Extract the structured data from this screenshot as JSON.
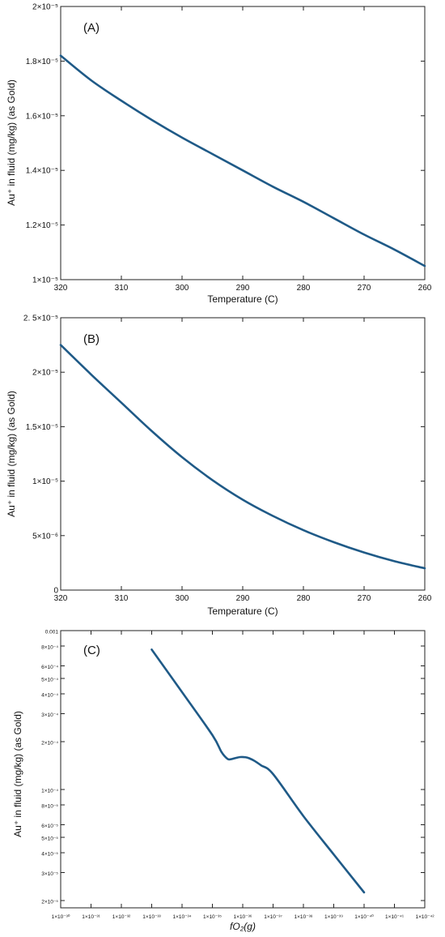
{
  "colors": {
    "series": "#1f5a87"
  },
  "chart_data": [
    {
      "type": "line",
      "panel_label": "(A)",
      "xlabel": "Temperature (C)",
      "ylabel": "Au⁺ in fluid (mg/kg) (as Gold)",
      "xlim": [
        320,
        260
      ],
      "ylim": [
        1e-05,
        2e-05
      ],
      "x_ticks": [
        320,
        310,
        300,
        290,
        280,
        270,
        260
      ],
      "x_tick_labels": [
        "320",
        "310",
        "300",
        "290",
        "280",
        "270",
        "260"
      ],
      "y_ticks": [
        1e-05,
        1.2e-05,
        1.4e-05,
        1.6e-05,
        1.8e-05,
        2e-05
      ],
      "y_tick_labels": [
        "1×10⁻⁵",
        "1.2×10⁻⁵",
        "1.4×10⁻⁵",
        "1.6×10⁻⁵",
        "1.8×10⁻⁵",
        "2×10⁻⁵"
      ],
      "series": [
        {
          "x": [
            320,
            315,
            310,
            305,
            300,
            295,
            290,
            285,
            280,
            275,
            270,
            265,
            260
          ],
          "y": [
            1.82e-05,
            1.73e-05,
            1.655e-05,
            1.585e-05,
            1.52e-05,
            1.46e-05,
            1.4e-05,
            1.34e-05,
            1.285e-05,
            1.225e-05,
            1.165e-05,
            1.11e-05,
            1.05e-05
          ]
        }
      ]
    },
    {
      "type": "line",
      "panel_label": "(B)",
      "xlabel": "Temperature (C)",
      "ylabel": "Au⁺ in fluid (mg/kg) (as Gold)",
      "xlim": [
        320,
        260
      ],
      "ylim": [
        0,
        2.5e-05
      ],
      "x_ticks": [
        320,
        310,
        300,
        290,
        280,
        270,
        260
      ],
      "x_tick_labels": [
        "320",
        "310",
        "300",
        "290",
        "280",
        "270",
        "260"
      ],
      "y_ticks": [
        0,
        5e-06,
        1e-05,
        1.5e-05,
        2e-05,
        2.5e-05
      ],
      "y_tick_labels": [
        "0",
        "5×10⁻⁶",
        "1×10⁻⁵",
        "1.5×10⁻⁵",
        "2×10⁻⁵",
        "2. 5×10⁻⁵"
      ],
      "series": [
        {
          "x": [
            320,
            315,
            310,
            305,
            300,
            295,
            290,
            285,
            280,
            275,
            270,
            265,
            260
          ],
          "y": [
            2.25e-05,
            1.98e-05,
            1.72e-05,
            1.46e-05,
            1.22e-05,
            1.01e-05,
            8.3e-06,
            6.8e-06,
            5.5e-06,
            4.4e-06,
            3.45e-06,
            2.65e-06,
            2e-06
          ]
        }
      ]
    },
    {
      "type": "line",
      "panel_label": "(C)",
      "xlabel": "fO₂(g)",
      "ylabel": "Au⁺ in fluid (mg/kg) (as Gold)",
      "x_scale": "log",
      "y_scale": "log",
      "xlim": [
        1e-30,
        1e-42
      ],
      "ylim": [
        1.8e-05,
        0.001
      ],
      "x_ticks": [
        1e-30,
        1e-31,
        1e-32,
        1e-33,
        1e-34,
        1e-35,
        1e-36,
        1e-37,
        1e-38,
        1e-39,
        1e-40,
        1e-41,
        1e-42
      ],
      "x_tick_labels": [
        "1×10⁻³⁰",
        "1×10⁻³¹",
        "1×10⁻³²",
        "1×10⁻³³",
        "1×10⁻³⁴",
        "1×10⁻³⁵",
        "1×10⁻³⁶",
        "1×10⁻³⁷",
        "1×10⁻³⁸",
        "1×10⁻³⁹",
        "1×10⁻⁴⁰",
        "1×10⁻⁴¹",
        "1×10⁻⁴²"
      ],
      "y_ticks": [
        2e-05,
        3e-05,
        4e-05,
        5e-05,
        6e-05,
        8e-05,
        0.0001,
        0.0002,
        0.0003,
        0.0004,
        0.0005,
        0.0006,
        0.0008,
        0.001
      ],
      "y_tick_labels": [
        "2×10⁻⁵",
        "3×10⁻⁵",
        "4×10⁻⁵",
        "5×10⁻⁵",
        "6×10⁻⁵",
        "8×10⁻⁵",
        "1×10⁻⁴",
        "2×10⁻⁴",
        "3×10⁻⁴",
        "4×10⁻⁴",
        "5×10⁻⁴",
        "6×10⁻⁴",
        "8×10⁻⁴",
        "0.001"
      ],
      "series": [
        {
          "x": [
            1e-33,
            1e-34,
            1e-35,
            5e-36,
            3.2e-36,
            2.5e-36,
            1.8e-36,
            1.2e-36,
            8e-37,
            6e-37,
            4e-37,
            2.5e-37,
            1e-37,
            1e-38,
            1e-39,
            1e-40
          ],
          "y": [
            0.00076,
            0.00041,
            0.00022,
            0.000172,
            0.000156,
            0.000155,
            0.0001575,
            0.00016,
            0.0001595,
            0.000157,
            0.000151,
            0.000142,
            0.000125,
            6.8e-05,
            3.9e-05,
            2.25e-05
          ]
        }
      ]
    }
  ]
}
